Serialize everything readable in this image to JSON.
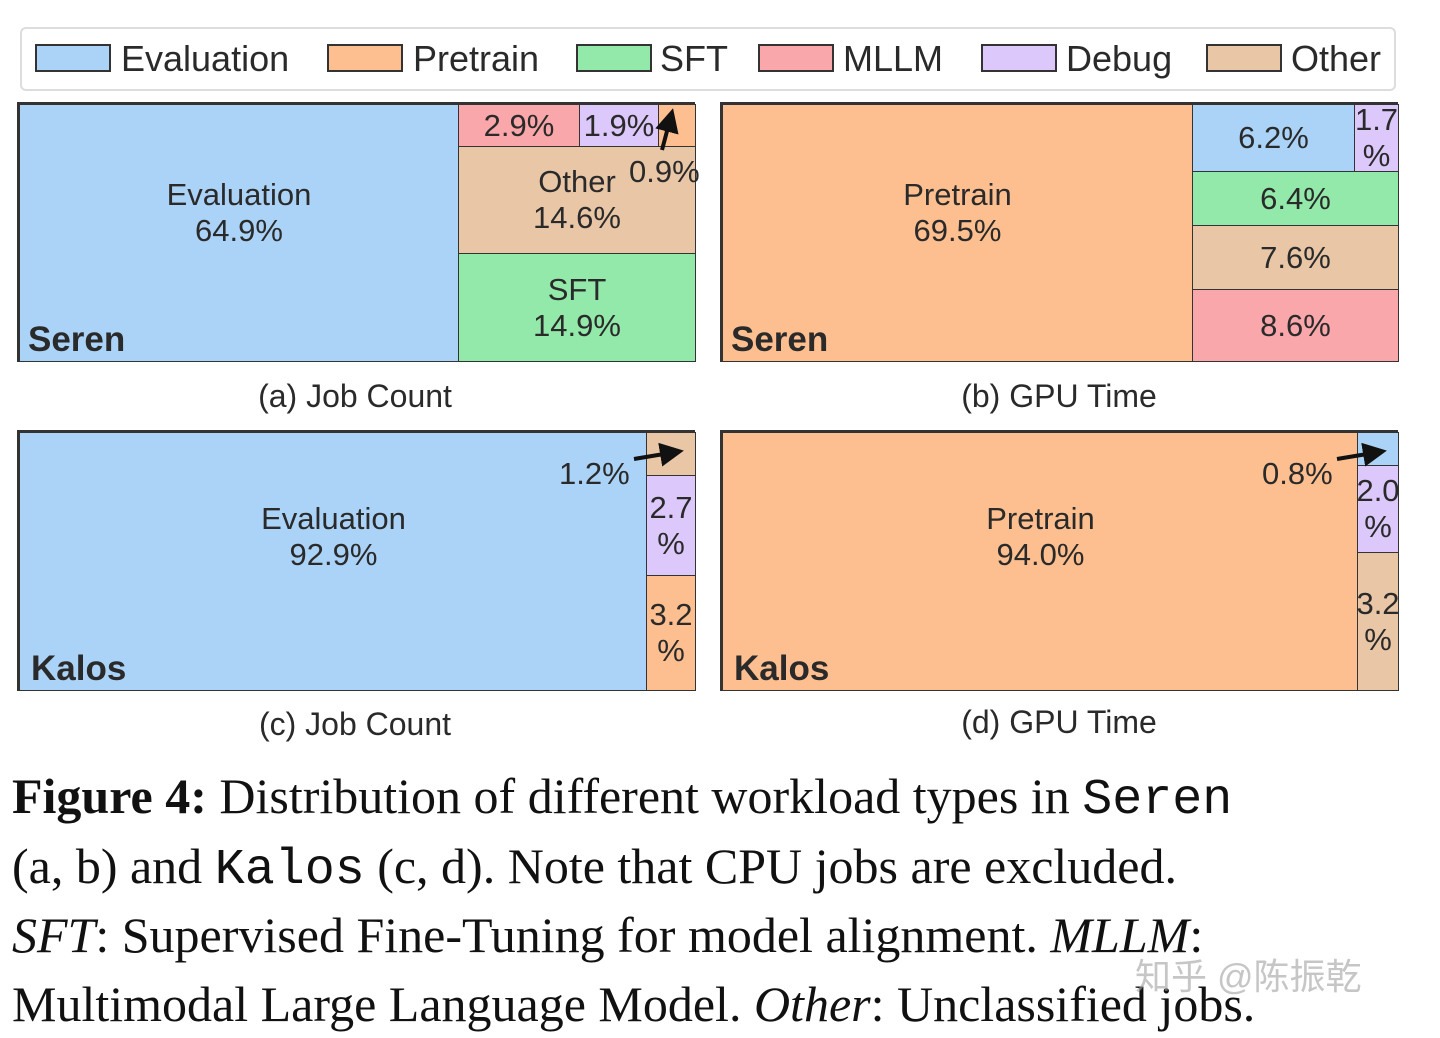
{
  "colors": {
    "Evaluation": "#abd3f7",
    "Pretrain": "#fdbf8f",
    "SFT": "#93e9a9",
    "MLLM": "#f9a7aa",
    "Debug": "#dcc8fb",
    "Other": "#e9c6a6"
  },
  "legend": [
    "Evaluation",
    "Pretrain",
    "SFT",
    "MLLM",
    "Debug",
    "Other"
  ],
  "chart_data": [
    {
      "type": "treemap",
      "cluster": "Seren",
      "metric": "Job Count",
      "caption": "(a) Job Count",
      "slices": [
        {
          "category": "Evaluation",
          "value": 64.9,
          "label": "Evaluation\n64.9%"
        },
        {
          "category": "SFT",
          "value": 14.9,
          "label": "SFT\n14.9%"
        },
        {
          "category": "Other",
          "value": 14.6,
          "label": "Other\n14.6%"
        },
        {
          "category": "MLLM",
          "value": 2.9,
          "label": "2.9%"
        },
        {
          "category": "Debug",
          "value": 1.9,
          "label": "1.9%"
        },
        {
          "category": "Pretrain",
          "value": 0.9,
          "label": "0.9%"
        }
      ]
    },
    {
      "type": "treemap",
      "cluster": "Seren",
      "metric": "GPU Time",
      "caption": "(b) GPU Time",
      "slices": [
        {
          "category": "Pretrain",
          "value": 69.5,
          "label": "Pretrain\n69.5%"
        },
        {
          "category": "Evaluation",
          "value": 6.2,
          "label": "6.2%"
        },
        {
          "category": "Debug",
          "value": 1.7,
          "label": "1.7\n%"
        },
        {
          "category": "SFT",
          "value": 6.4,
          "label": "6.4%"
        },
        {
          "category": "Other",
          "value": 7.6,
          "label": "7.6%"
        },
        {
          "category": "MLLM",
          "value": 8.6,
          "label": "8.6%"
        }
      ]
    },
    {
      "type": "treemap",
      "cluster": "Kalos",
      "metric": "Job Count",
      "caption": "(c) Job Count",
      "slices": [
        {
          "category": "Evaluation",
          "value": 92.9,
          "label": "Evaluation\n92.9%"
        },
        {
          "category": "Other",
          "value": 1.2,
          "label": "1.2%"
        },
        {
          "category": "Debug",
          "value": 2.7,
          "label": "2.7\n%"
        },
        {
          "category": "Pretrain",
          "value": 3.2,
          "label": "3.2\n%"
        }
      ]
    },
    {
      "type": "treemap",
      "cluster": "Kalos",
      "metric": "GPU Time",
      "caption": "(d) GPU Time",
      "slices": [
        {
          "category": "Pretrain",
          "value": 94.0,
          "label": "Pretrain\n94.0%"
        },
        {
          "category": "Evaluation",
          "value": 0.8,
          "label": "0.8%"
        },
        {
          "category": "Debug",
          "value": 2.0,
          "label": "2.0\n%"
        },
        {
          "category": "Other",
          "value": 3.2,
          "label": "3.2\n%"
        }
      ]
    }
  ],
  "caption": {
    "fig": "Figure 4:",
    "t1": " Distribution of different workload types in ",
    "seren": "Seren",
    "t2": "(a, b) and ",
    "kalos": "Kalos",
    "t3": " (c, d). Note that CPU jobs are excluded.",
    "sft": "SFT",
    "t4": ": Supervised Fine-Tuning for model alignment. ",
    "mllm": "MLLM",
    "t5": ":",
    "t6": "Multimodal Large Language Model. ",
    "other": "Other",
    "t7": ": Unclassified jobs."
  },
  "watermark": "知乎 @陈振乾"
}
